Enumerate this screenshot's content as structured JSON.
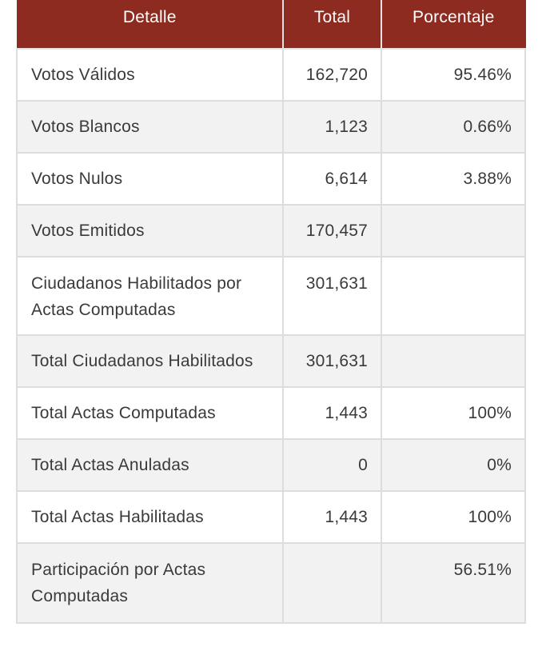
{
  "table": {
    "headers": {
      "detail": "Detalle",
      "total": "Total",
      "percent": "Porcentaje"
    },
    "rows": [
      {
        "label": "Votos Válidos",
        "total": "162,720",
        "percent": "95.46%"
      },
      {
        "label": "Votos Blancos",
        "total": "1,123",
        "percent": "0.66%"
      },
      {
        "label": "Votos Nulos",
        "total": "6,614",
        "percent": "3.88%"
      },
      {
        "label": "Votos Emitidos",
        "total": "170,457",
        "percent": ""
      },
      {
        "label": "Ciudadanos Habilitados por Actas Computadas",
        "total": "301,631",
        "percent": ""
      },
      {
        "label": "Total Ciudadanos Habilitados",
        "total": "301,631",
        "percent": ""
      },
      {
        "label": "Total Actas Computadas",
        "total": "1,443",
        "percent": "100%"
      },
      {
        "label": "Total Actas Anuladas",
        "total": "0",
        "percent": "0%"
      },
      {
        "label": "Total Actas Habilitadas",
        "total": "1,443",
        "percent": "100%"
      },
      {
        "label": "Participación por Actas Computadas",
        "total": "",
        "percent": "56.51%"
      }
    ]
  },
  "colors": {
    "header_bg": "#8d2b20",
    "header_text": "#ffffff",
    "row_alt_bg": "#f2f2f2",
    "border": "#dddddd"
  }
}
